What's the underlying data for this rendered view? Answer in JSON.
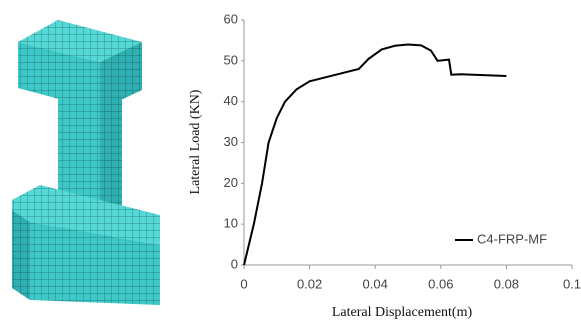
{
  "chart_data": {
    "type": "line",
    "x_label": "Lateral Displacement(m)",
    "y_label": "Lateral Load (KN)",
    "x": [
      0,
      0.003,
      0.0055,
      0.0075,
      0.01,
      0.0125,
      0.016,
      0.02,
      0.025,
      0.03,
      0.035,
      0.038,
      0.042,
      0.046,
      0.05,
      0.054,
      0.057,
      0.059,
      0.0625,
      0.0632,
      0.066,
      0.08
    ],
    "series": [
      {
        "name": "C4-FRP-MF",
        "color": "#000000",
        "values": [
          0,
          10,
          20,
          30,
          36,
          40,
          43,
          45,
          46,
          47,
          48,
          50.5,
          52.8,
          53.7,
          54,
          53.8,
          52.5,
          50,
          50.3,
          46.6,
          46.7,
          46.3
        ]
      }
    ],
    "xlim": [
      0,
      0.1
    ],
    "xticks": [
      0,
      0.02,
      0.04,
      0.06,
      0.08,
      0.1
    ],
    "ylim": [
      0,
      60
    ],
    "yticks": [
      0,
      10,
      20,
      30,
      40,
      50,
      60
    ],
    "grid": false,
    "legend": "lower right"
  }
}
